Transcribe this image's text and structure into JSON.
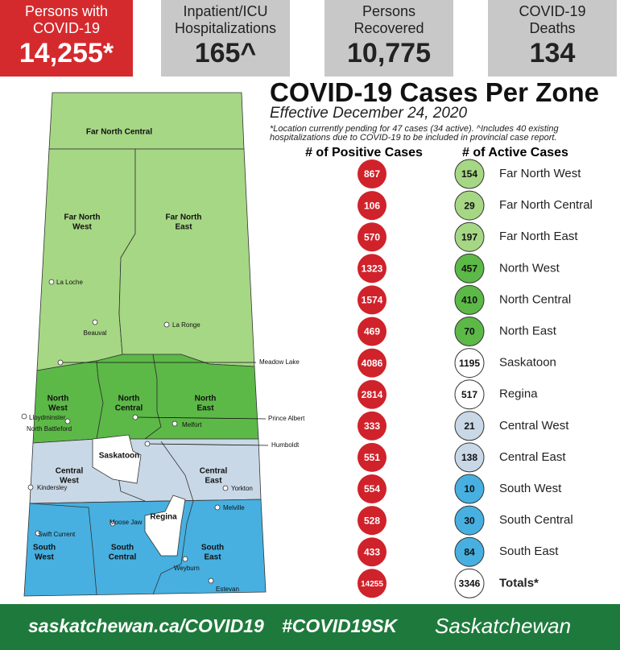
{
  "stats": [
    {
      "label": "Persons with COVID-19",
      "value": "14,255*"
    },
    {
      "label": "Inpatient/ICU Hospitalizations",
      "value": "165^"
    },
    {
      "label": "Persons Recovered",
      "value": "10,775"
    },
    {
      "label": "COVID-19 Deaths",
      "value": "134"
    }
  ],
  "title": "COVID-19 Cases Per Zone",
  "effective": "Effective December 24, 2020",
  "note": "*Location currently pending for 47 cases (34 active). ^Includes 40 existing hospitalizations due to COVID-19 to be included in provincial case report.",
  "table": {
    "headers": [
      "# of Positive Cases",
      "# of Active Cases"
    ],
    "rows": [
      {
        "zone": "Far North West",
        "positive": 867,
        "active": 154,
        "color": "#a6d785"
      },
      {
        "zone": "Far North Central",
        "positive": 106,
        "active": 29,
        "color": "#a6d785"
      },
      {
        "zone": "Far North East",
        "positive": 570,
        "active": 197,
        "color": "#a6d785"
      },
      {
        "zone": "North West",
        "positive": 1323,
        "active": 457,
        "color": "#5cb947"
      },
      {
        "zone": "North Central",
        "positive": 1574,
        "active": 410,
        "color": "#5cb947"
      },
      {
        "zone": "North East",
        "positive": 469,
        "active": 70,
        "color": "#5cb947"
      },
      {
        "zone": "Saskatoon",
        "positive": 4086,
        "active": 1195,
        "color": "#ffffff"
      },
      {
        "zone": "Regina",
        "positive": 2814,
        "active": 517,
        "color": "#ffffff"
      },
      {
        "zone": "Central West",
        "positive": 333,
        "active": 21,
        "color": "#c9d8e6"
      },
      {
        "zone": "Central East",
        "positive": 551,
        "active": 138,
        "color": "#c9d8e6"
      },
      {
        "zone": "South West",
        "positive": 554,
        "active": 10,
        "color": "#47b0e0"
      },
      {
        "zone": "South Central",
        "positive": 528,
        "active": 30,
        "color": "#47b0e0"
      },
      {
        "zone": "South East",
        "positive": 433,
        "active": 84,
        "color": "#47b0e0"
      }
    ],
    "totals": {
      "label": "Totals*",
      "positive": 14255,
      "active": 3346
    }
  },
  "map": {
    "zones": [
      [
        "Far North Central"
      ],
      [
        "Far North",
        "West"
      ],
      [
        "Far North",
        "East"
      ],
      [
        "North",
        "West"
      ],
      [
        "North",
        "Central"
      ],
      [
        "North",
        "East"
      ],
      [
        "Saskatoon"
      ],
      [
        "Central",
        "West"
      ],
      [
        "Central",
        "East"
      ],
      [
        "Regina"
      ],
      [
        "South",
        "West"
      ],
      [
        "South",
        "Central"
      ],
      [
        "South",
        "East"
      ]
    ],
    "cities": [
      "La Loche",
      "Beauval",
      "La Ronge",
      "Meadow Lake",
      "Lloydminster",
      "North Battleford",
      "Prince Albert",
      "Melfort",
      "Humboldt",
      "Kindersley",
      "Yorkton",
      "Melville",
      "Swift Current",
      "Moose Jaw",
      "Weyburn",
      "Estevan"
    ]
  },
  "footer": {
    "url": "saskatchewan.ca/COVID19",
    "hashtag": "#COVID19SK",
    "brand": "Saskatchewan"
  }
}
